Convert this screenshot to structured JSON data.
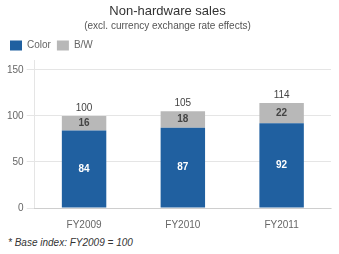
{
  "chart_data": {
    "type": "bar",
    "title": "Non-hardware sales",
    "subtitle": "(excl. currency exchange rate effects)",
    "footnote": "* Base index: FY2009 = 100",
    "categories": [
      "FY2009",
      "FY2010",
      "FY2011"
    ],
    "series": [
      {
        "name": "Color",
        "color": "#2060a0",
        "values": [
          84,
          87,
          92
        ]
      },
      {
        "name": "B/W",
        "color": "#b8b8b8",
        "values": [
          16,
          18,
          22
        ]
      }
    ],
    "totals": [
      100,
      105,
      114
    ],
    "stacked": true,
    "data_labels": true,
    "ylim": [
      0,
      160
    ],
    "yticks": [
      0,
      50,
      100,
      150
    ],
    "grid": true,
    "legend": "upper left"
  }
}
